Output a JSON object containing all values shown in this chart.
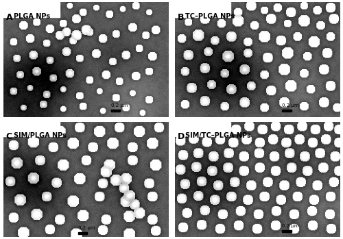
{
  "panels": [
    {
      "label": "A",
      "title": "PLGA NPs",
      "scale_bar": "0.2 μm",
      "scale_pos": "lower_right"
    },
    {
      "label": "B",
      "title": "TC–PLGA NPs",
      "scale_bar": "0.2 μm",
      "scale_pos": "lower_right"
    },
    {
      "label": "C",
      "title": "SIM/PLGA NPs",
      "scale_bar": "0.2 μm",
      "scale_pos": "lower_center"
    },
    {
      "label": "D",
      "title": "SIM/TC–PLGA NPs",
      "scale_bar": "0.2 μm",
      "scale_pos": "lower_right"
    }
  ],
  "bg_color_dark": "#3a3a3a",
  "bg_color_mid": "#606060",
  "bg_color_light": "#909090",
  "particle_color": "#ffffff",
  "particle_shadow": "#1a1a1a",
  "label_bg": "#ffffff",
  "label_text": "#000000",
  "outer_border": "#ffffff",
  "fig_bg": "#ffffff",
  "title_fontsize": 7,
  "label_fontsize": 9,
  "scalebar_fontsize": 5
}
